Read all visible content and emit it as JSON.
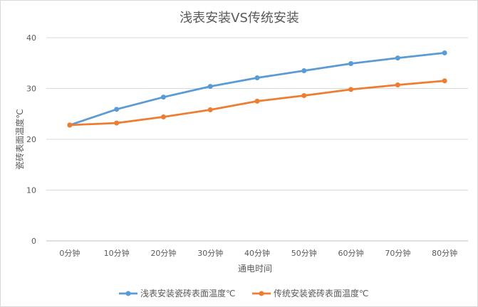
{
  "chart_data": {
    "type": "line",
    "title": "浅表安装VS传统安装",
    "xlabel": "通电时间",
    "ylabel": "瓷砖表面温度℃",
    "categories": [
      "0分钟",
      "10分钟",
      "20分钟",
      "30分钟",
      "40分钟",
      "50分钟",
      "60分钟",
      "70分钟",
      "80分钟"
    ],
    "ylim": [
      0,
      40
    ],
    "yticks": [
      0,
      10,
      20,
      30,
      40
    ],
    "grid": true,
    "legend_position": "bottom",
    "series": [
      {
        "name": "浅表安装瓷砖表面温度℃",
        "color": "#5b9bd5",
        "values": [
          22.8,
          25.9,
          28.3,
          30.4,
          32.1,
          33.5,
          34.9,
          36.0,
          37.0
        ]
      },
      {
        "name": "传统安装瓷砖表面温度℃",
        "color": "#ed7d31",
        "values": [
          22.8,
          23.2,
          24.4,
          25.8,
          27.5,
          28.6,
          29.8,
          30.7,
          31.5
        ]
      }
    ]
  }
}
